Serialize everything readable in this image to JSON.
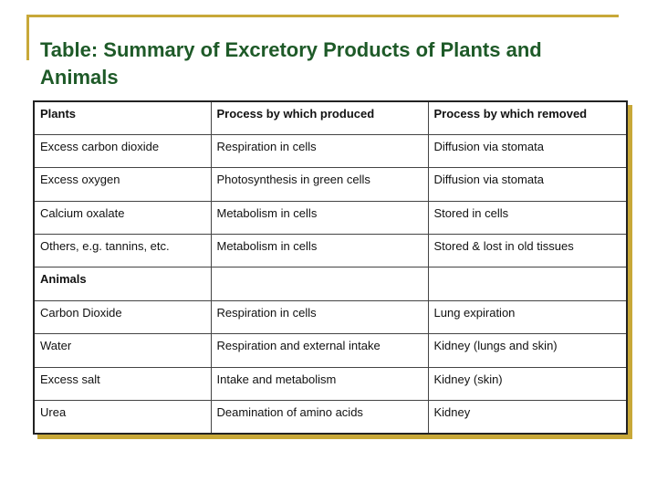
{
  "title": "Table:  Summary of Excretory Products of Plants and Animals",
  "table": {
    "header": [
      "Plants",
      "Process by which produced",
      "Process by which removed"
    ],
    "rows": [
      [
        "Excess carbon dioxide",
        "Respiration in cells",
        "Diffusion via stomata"
      ],
      [
        "Excess oxygen",
        "Photosynthesis in green cells",
        "Diffusion via stomata"
      ],
      [
        "Calcium oxalate",
        "Metabolism in cells",
        "Stored in cells"
      ],
      [
        "Others, e.g. tannins, etc.",
        "Metabolism in cells",
        "Stored & lost in old tissues"
      ],
      [
        "Animals"
      ],
      [
        "Carbon Dioxide",
        "Respiration in cells",
        "Lung expiration"
      ],
      [
        "Water",
        "Respiration and external intake",
        "Kidney (lungs and skin)"
      ],
      [
        "Excess salt",
        "Intake and metabolism",
        "Kidney (skin)"
      ],
      [
        "Urea",
        "Deamination of amino acids",
        "Kidney"
      ]
    ]
  }
}
